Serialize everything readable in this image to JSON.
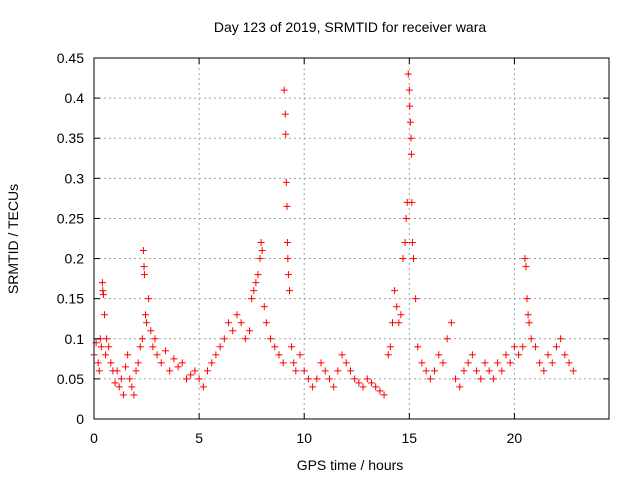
{
  "chart_data": {
    "type": "scatter",
    "title": "Day 123 of 2019, SRMTID for receiver wara",
    "xlabel": "GPS time / hours",
    "ylabel": "SRMTID / TECUs",
    "xlim": [
      0,
      24.5
    ],
    "ylim": [
      0,
      0.45
    ],
    "xticks": [
      0,
      5,
      10,
      15,
      20
    ],
    "xtick_labels": [
      "0",
      "5",
      "10",
      "15",
      "20"
    ],
    "yticks": [
      0,
      0.05,
      0.1,
      0.15,
      0.2,
      0.25,
      0.3,
      0.35,
      0.4,
      0.45
    ],
    "ytick_labels": [
      "0",
      "0.05",
      "0.1",
      "0.15",
      "0.2",
      "0.25",
      "0.3",
      "0.35",
      "0.4",
      "0.45"
    ],
    "grid": true,
    "marker": "+",
    "series": [
      {
        "name": "SRMTID",
        "color": "#ff0000",
        "points": [
          [
            0.0,
            0.08
          ],
          [
            0.1,
            0.095
          ],
          [
            0.2,
            0.07
          ],
          [
            0.25,
            0.06
          ],
          [
            0.3,
            0.1
          ],
          [
            0.35,
            0.09
          ],
          [
            0.4,
            0.17
          ],
          [
            0.42,
            0.16
          ],
          [
            0.45,
            0.155
          ],
          [
            0.5,
            0.13
          ],
          [
            0.55,
            0.08
          ],
          [
            0.6,
            0.1
          ],
          [
            0.7,
            0.09
          ],
          [
            0.8,
            0.07
          ],
          [
            0.9,
            0.06
          ],
          [
            1.0,
            0.045
          ],
          [
            1.1,
            0.06
          ],
          [
            1.2,
            0.04
          ],
          [
            1.3,
            0.05
          ],
          [
            1.4,
            0.03
          ],
          [
            1.5,
            0.065
          ],
          [
            1.6,
            0.08
          ],
          [
            1.7,
            0.05
          ],
          [
            1.8,
            0.04
          ],
          [
            1.9,
            0.03
          ],
          [
            2.0,
            0.06
          ],
          [
            2.1,
            0.07
          ],
          [
            2.2,
            0.09
          ],
          [
            2.3,
            0.1
          ],
          [
            2.35,
            0.21
          ],
          [
            2.38,
            0.19
          ],
          [
            2.4,
            0.18
          ],
          [
            2.45,
            0.13
          ],
          [
            2.5,
            0.12
          ],
          [
            2.6,
            0.15
          ],
          [
            2.7,
            0.11
          ],
          [
            2.8,
            0.09
          ],
          [
            2.9,
            0.1
          ],
          [
            3.0,
            0.08
          ],
          [
            3.2,
            0.07
          ],
          [
            3.4,
            0.085
          ],
          [
            3.6,
            0.06
          ],
          [
            3.8,
            0.075
          ],
          [
            4.0,
            0.065
          ],
          [
            4.2,
            0.07
          ],
          [
            4.4,
            0.05
          ],
          [
            4.6,
            0.055
          ],
          [
            4.8,
            0.06
          ],
          [
            5.0,
            0.05
          ],
          [
            5.2,
            0.04
          ],
          [
            5.4,
            0.06
          ],
          [
            5.6,
            0.07
          ],
          [
            5.8,
            0.08
          ],
          [
            6.0,
            0.09
          ],
          [
            6.2,
            0.1
          ],
          [
            6.4,
            0.12
          ],
          [
            6.6,
            0.11
          ],
          [
            6.8,
            0.13
          ],
          [
            7.0,
            0.12
          ],
          [
            7.2,
            0.1
          ],
          [
            7.4,
            0.11
          ],
          [
            7.5,
            0.15
          ],
          [
            7.6,
            0.16
          ],
          [
            7.7,
            0.17
          ],
          [
            7.8,
            0.18
          ],
          [
            7.9,
            0.2
          ],
          [
            7.95,
            0.22
          ],
          [
            8.0,
            0.21
          ],
          [
            8.1,
            0.14
          ],
          [
            8.2,
            0.12
          ],
          [
            8.4,
            0.1
          ],
          [
            8.6,
            0.09
          ],
          [
            8.8,
            0.08
          ],
          [
            9.0,
            0.07
          ],
          [
            9.05,
            0.41
          ],
          [
            9.1,
            0.38
          ],
          [
            9.12,
            0.355
          ],
          [
            9.15,
            0.295
          ],
          [
            9.18,
            0.265
          ],
          [
            9.2,
            0.22
          ],
          [
            9.22,
            0.2
          ],
          [
            9.25,
            0.18
          ],
          [
            9.3,
            0.16
          ],
          [
            9.4,
            0.09
          ],
          [
            9.5,
            0.07
          ],
          [
            9.6,
            0.06
          ],
          [
            9.8,
            0.08
          ],
          [
            10.0,
            0.06
          ],
          [
            10.2,
            0.05
          ],
          [
            10.4,
            0.04
          ],
          [
            10.6,
            0.05
          ],
          [
            10.8,
            0.07
          ],
          [
            11.0,
            0.06
          ],
          [
            11.2,
            0.05
          ],
          [
            11.4,
            0.04
          ],
          [
            11.6,
            0.06
          ],
          [
            11.8,
            0.08
          ],
          [
            12.0,
            0.07
          ],
          [
            12.2,
            0.06
          ],
          [
            12.4,
            0.05
          ],
          [
            12.6,
            0.045
          ],
          [
            12.8,
            0.04
          ],
          [
            13.0,
            0.05
          ],
          [
            13.2,
            0.045
          ],
          [
            13.4,
            0.04
          ],
          [
            13.6,
            0.035
          ],
          [
            13.8,
            0.03
          ],
          [
            14.0,
            0.08
          ],
          [
            14.1,
            0.09
          ],
          [
            14.2,
            0.12
          ],
          [
            14.3,
            0.16
          ],
          [
            14.4,
            0.14
          ],
          [
            14.5,
            0.12
          ],
          [
            14.6,
            0.13
          ],
          [
            14.7,
            0.2
          ],
          [
            14.8,
            0.22
          ],
          [
            14.85,
            0.25
          ],
          [
            14.9,
            0.27
          ],
          [
            14.95,
            0.43
          ],
          [
            15.0,
            0.41
          ],
          [
            15.02,
            0.39
          ],
          [
            15.05,
            0.37
          ],
          [
            15.08,
            0.35
          ],
          [
            15.1,
            0.33
          ],
          [
            15.12,
            0.27
          ],
          [
            15.15,
            0.22
          ],
          [
            15.2,
            0.2
          ],
          [
            15.3,
            0.15
          ],
          [
            15.4,
            0.09
          ],
          [
            15.6,
            0.07
          ],
          [
            15.8,
            0.06
          ],
          [
            16.0,
            0.05
          ],
          [
            16.2,
            0.06
          ],
          [
            16.4,
            0.08
          ],
          [
            16.6,
            0.07
          ],
          [
            16.8,
            0.1
          ],
          [
            17.0,
            0.12
          ],
          [
            17.2,
            0.05
          ],
          [
            17.4,
            0.04
          ],
          [
            17.6,
            0.06
          ],
          [
            17.8,
            0.07
          ],
          [
            18.0,
            0.08
          ],
          [
            18.2,
            0.06
          ],
          [
            18.4,
            0.05
          ],
          [
            18.6,
            0.07
          ],
          [
            18.8,
            0.06
          ],
          [
            19.0,
            0.05
          ],
          [
            19.2,
            0.07
          ],
          [
            19.4,
            0.06
          ],
          [
            19.6,
            0.08
          ],
          [
            19.8,
            0.07
          ],
          [
            20.0,
            0.09
          ],
          [
            20.2,
            0.08
          ],
          [
            20.4,
            0.09
          ],
          [
            20.5,
            0.2
          ],
          [
            20.55,
            0.19
          ],
          [
            20.6,
            0.15
          ],
          [
            20.65,
            0.13
          ],
          [
            20.7,
            0.12
          ],
          [
            20.8,
            0.1
          ],
          [
            21.0,
            0.09
          ],
          [
            21.2,
            0.07
          ],
          [
            21.4,
            0.06
          ],
          [
            21.6,
            0.08
          ],
          [
            21.8,
            0.07
          ],
          [
            22.0,
            0.09
          ],
          [
            22.2,
            0.1
          ],
          [
            22.4,
            0.08
          ],
          [
            22.6,
            0.07
          ],
          [
            22.8,
            0.06
          ]
        ]
      }
    ]
  }
}
